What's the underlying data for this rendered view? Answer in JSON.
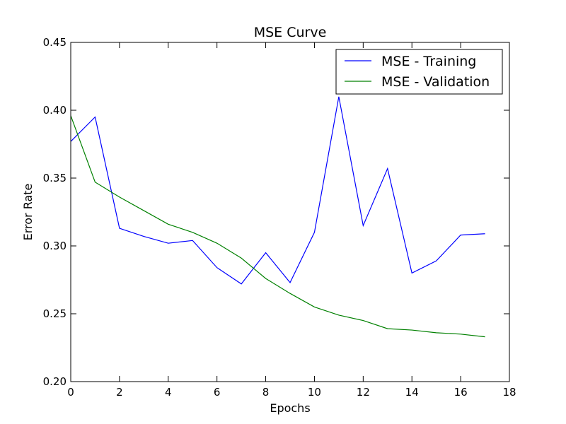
{
  "chart_data": {
    "type": "line",
    "title": "MSE Curve",
    "xlabel": "Epochs",
    "ylabel": "Error Rate",
    "xlim": [
      0,
      18
    ],
    "ylim": [
      0.2,
      0.45
    ],
    "x_ticks": [
      0,
      2,
      4,
      6,
      8,
      10,
      12,
      14,
      16,
      18
    ],
    "y_ticks": [
      0.2,
      0.25,
      0.3,
      0.35,
      0.4,
      0.45
    ],
    "x_tick_labels": [
      "0",
      "2",
      "4",
      "6",
      "8",
      "10",
      "12",
      "14",
      "16",
      "18"
    ],
    "y_tick_labels": [
      "0.20",
      "0.25",
      "0.30",
      "0.35",
      "0.40",
      "0.45"
    ],
    "grid": false,
    "legend_position": "top-right",
    "x": [
      0,
      1,
      2,
      3,
      4,
      5,
      6,
      7,
      8,
      9,
      10,
      11,
      12,
      13,
      14,
      15,
      16,
      17
    ],
    "series": [
      {
        "name": "MSE - Training",
        "color": "#0000ff",
        "values": [
          0.377,
          0.395,
          0.313,
          0.307,
          0.302,
          0.304,
          0.284,
          0.272,
          0.295,
          0.273,
          0.31,
          0.41,
          0.315,
          0.357,
          0.28,
          0.289,
          0.308,
          0.309
        ]
      },
      {
        "name": "MSE - Validation",
        "color": "#008000",
        "values": [
          0.396,
          0.347,
          0.336,
          0.326,
          0.316,
          0.31,
          0.302,
          0.291,
          0.276,
          0.265,
          0.255,
          0.249,
          0.245,
          0.239,
          0.238,
          0.236,
          0.235,
          0.233
        ]
      }
    ]
  }
}
